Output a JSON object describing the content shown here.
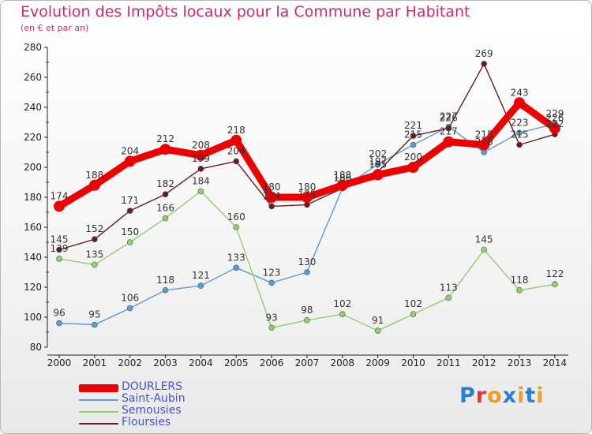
{
  "title": "Evolution des Impôts locaux pour la Commune par Habitant",
  "subtitle": "(en € et par an)",
  "logo": {
    "letters": [
      "P",
      "r",
      "o",
      "x",
      "i",
      "t",
      "i"
    ],
    "colors": [
      "#2a7fd4",
      "#e8322a",
      "#f0a020",
      "#2a7fd4",
      "#f0a020",
      "#2a7fd4",
      "#f0a020"
    ]
  },
  "chart_data": {
    "type": "line",
    "title": "Evolution des Impôts locaux pour la Commune par Habitant",
    "subtitle": "(en € et par an)",
    "x": [
      "2000",
      "2001",
      "2002",
      "2003",
      "2004",
      "2005",
      "2006",
      "2007",
      "2008",
      "2009",
      "2010",
      "2011",
      "2012",
      "2013",
      "2014"
    ],
    "ylim": [
      80,
      280
    ],
    "yticks": [
      80,
      100,
      120,
      140,
      160,
      180,
      200,
      220,
      240,
      260,
      280
    ],
    "grid": false,
    "legend_position": "bottom-left",
    "series": [
      {
        "name": "DOURLERS",
        "color": "#ee0000",
        "values": [
          174,
          188,
          204,
          212,
          208,
          218,
          180,
          180,
          188,
          195,
          200,
          217,
          215,
          243,
          226
        ],
        "labels": [
          "174",
          "188",
          "204",
          "212",
          "208",
          "218",
          "180",
          "180",
          "188",
          "195",
          "200",
          "217",
          "215",
          "243",
          "226"
        ]
      },
      {
        "name": "Saint-Aubin",
        "color": "#5b9bd5",
        "values": [
          96,
          95,
          106,
          118,
          121,
          133,
          123,
          130,
          186,
          202,
          215,
          227,
          210,
          223,
          229
        ],
        "labels": [
          "96",
          "95",
          "106",
          "118",
          "121",
          "133",
          "123",
          "130",
          "186",
          "202",
          "215",
          "227",
          "210",
          "223",
          "229"
        ]
      },
      {
        "name": "Semousies",
        "color": "#8fd16a",
        "values": [
          139,
          135,
          150,
          166,
          184,
          160,
          93,
          98,
          102,
          91,
          102,
          113,
          145,
          118,
          122
        ],
        "labels": [
          "139",
          "135",
          "150",
          "166",
          "184",
          "160",
          "93",
          "98",
          "102",
          "91",
          "102",
          "113",
          "145",
          "118",
          "122"
        ]
      },
      {
        "name": "Floursies",
        "color": "#6b1a1a",
        "values": [
          145,
          152,
          171,
          182,
          199,
          204,
          174,
          175,
          186,
          197,
          221,
          226,
          269,
          215,
          222
        ],
        "labels": [
          "145",
          "152",
          "171",
          "182",
          "199",
          "204",
          "174",
          "175",
          "186",
          "197",
          "221",
          "226",
          "269",
          "215",
          "222"
        ]
      }
    ]
  }
}
